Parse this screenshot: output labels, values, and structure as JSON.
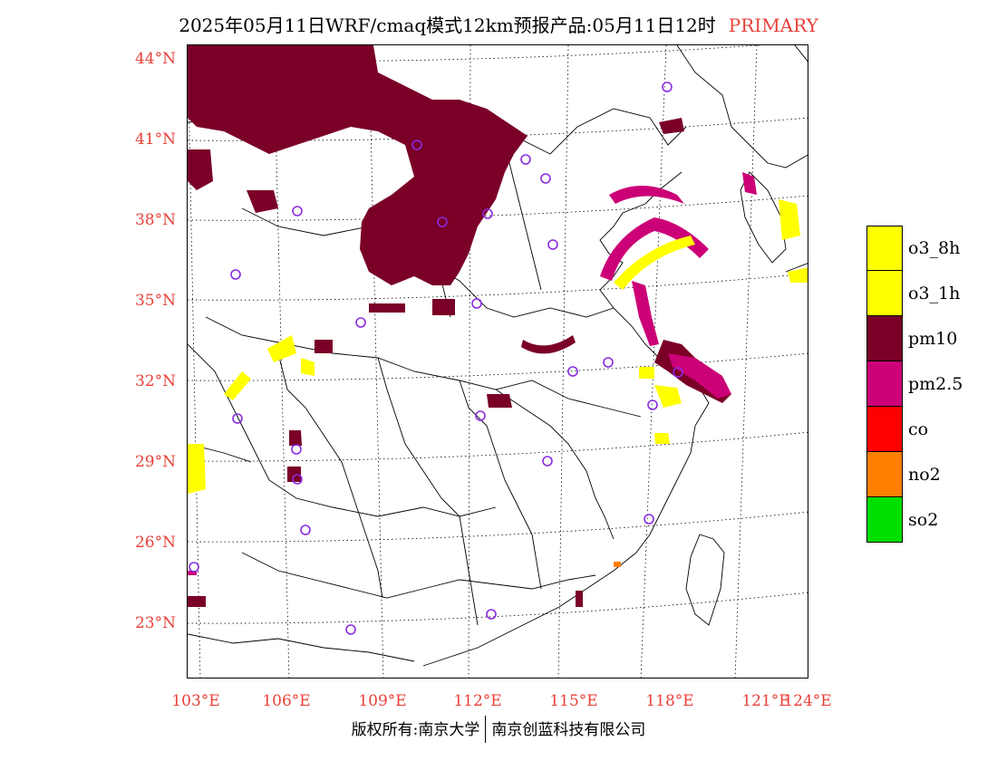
{
  "title": {
    "main": "2025年05月11日WRF/cmaq模式12km预报产品:05月11日12时",
    "tag": "PRIMARY"
  },
  "axes": {
    "lat_labels": [
      "44°N",
      "41°N",
      "38°N",
      "35°N",
      "32°N",
      "29°N",
      "26°N",
      "23°N"
    ],
    "lon_labels": [
      "103°E",
      "106°E",
      "109°E",
      "112°E",
      "115°E",
      "118°E",
      "121°E",
      "124°E"
    ]
  },
  "legend": {
    "items": [
      {
        "label": "o3_8h",
        "color": "#ffff00"
      },
      {
        "label": "o3_1h",
        "color": "#ffff00"
      },
      {
        "label": "pm10",
        "color": "#7a0027"
      },
      {
        "label": "pm2.5",
        "color": "#cc0077"
      },
      {
        "label": "co",
        "color": "#ff0000"
      },
      {
        "label": "no2",
        "color": "#ff8000"
      },
      {
        "label": "so2",
        "color": "#00e000"
      }
    ]
  },
  "colors": {
    "pm10": "#7a0027",
    "pm25": "#cc0077",
    "o3": "#ffff00",
    "no2": "#ff8000",
    "station": "#8a2be2",
    "label_red": "#e8403a"
  },
  "footer": {
    "left": "版权所有:南京大学",
    "right": "南京创蓝科技有限公司"
  }
}
